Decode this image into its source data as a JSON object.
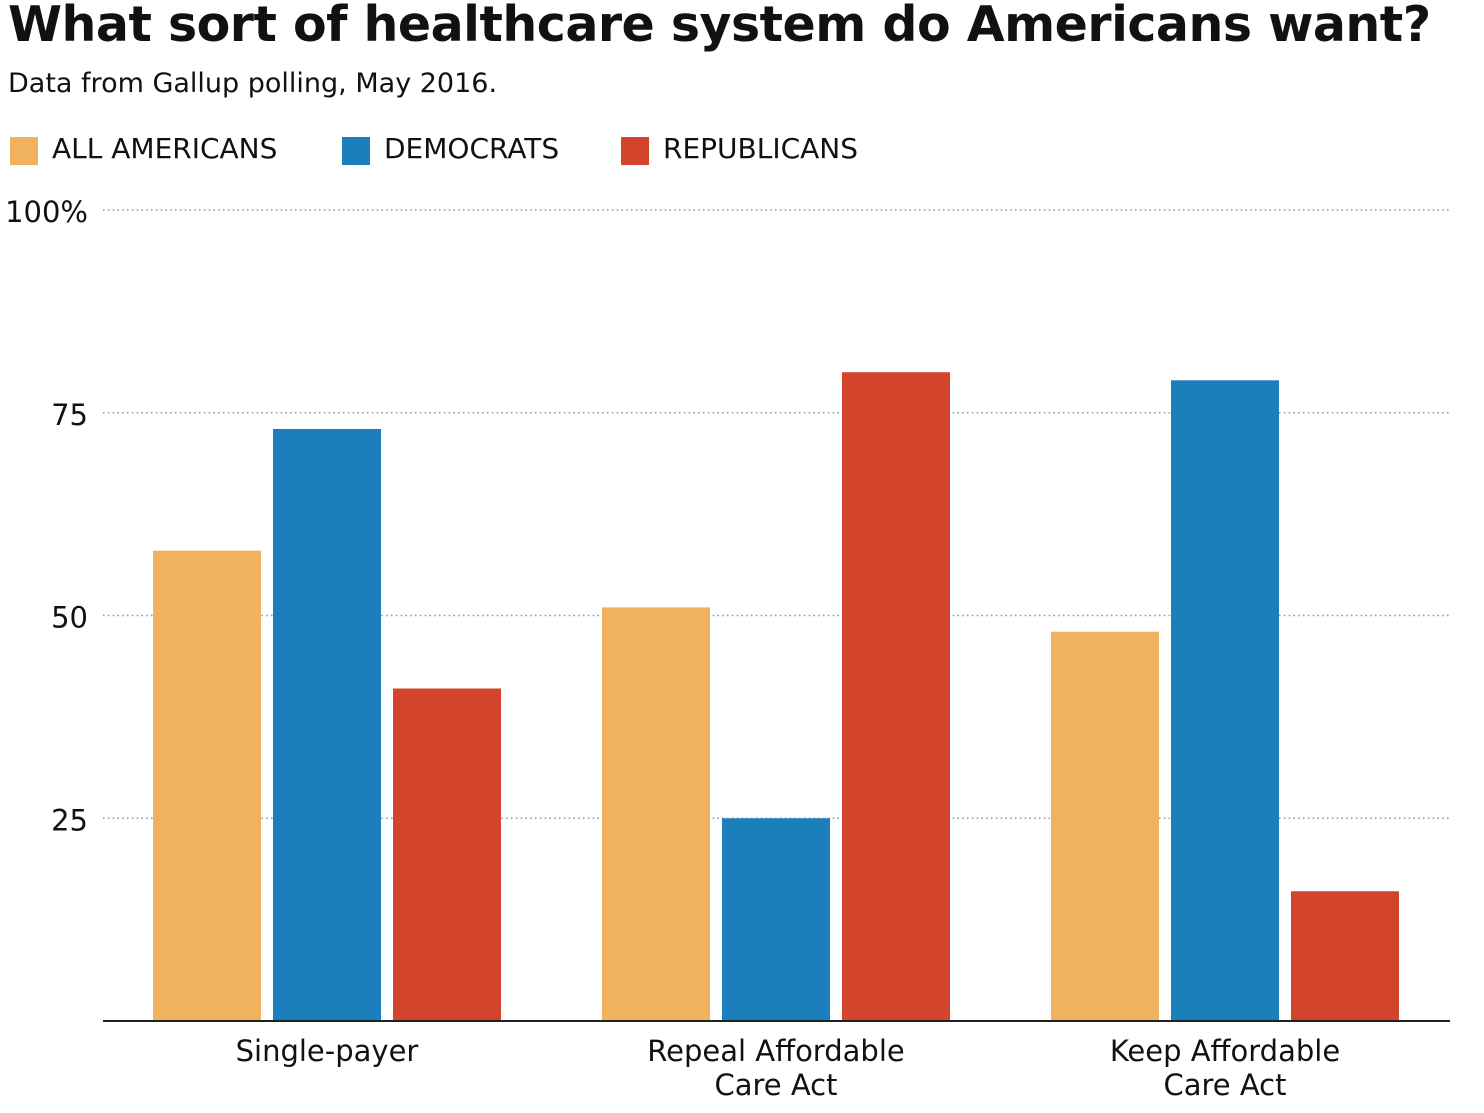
{
  "header": {
    "title": "What sort of healthcare system do Americans want?",
    "subtitle": "Data from Gallup polling, May 2016."
  },
  "legend": [
    {
      "label": "ALL AMERICANS",
      "color": "#f0b25e"
    },
    {
      "label": "DEMOCRATS",
      "color": "#1a7fbb"
    },
    {
      "label": "REPUBLICANS",
      "color": "#d2452c"
    }
  ],
  "chart_data": {
    "type": "bar",
    "title": "What sort of healthcare system do Americans want?",
    "subtitle": "Data from Gallup polling, May 2016.",
    "categories": [
      [
        "Single-payer"
      ],
      [
        "Repeal Affordable",
        "Care Act"
      ],
      [
        "Keep Affordable",
        "Care Act"
      ]
    ],
    "series": [
      {
        "name": "ALL AMERICANS",
        "color": "#f0b25e",
        "values": [
          58,
          51,
          48
        ]
      },
      {
        "name": "DEMOCRATS",
        "color": "#1a7fbb",
        "values": [
          73,
          25,
          79
        ]
      },
      {
        "name": "REPUBLICANS",
        "color": "#d2452c",
        "values": [
          41,
          80,
          16
        ]
      }
    ],
    "yticks": [
      {
        "value": 100,
        "label": "100%"
      },
      {
        "value": 75,
        "label": "75"
      },
      {
        "value": 50,
        "label": "50"
      },
      {
        "value": 25,
        "label": "25"
      }
    ],
    "ylim": [
      0,
      100
    ],
    "xlabel": "",
    "ylabel": "",
    "grid": "dotted horizontal",
    "legend_position": "top-left"
  }
}
